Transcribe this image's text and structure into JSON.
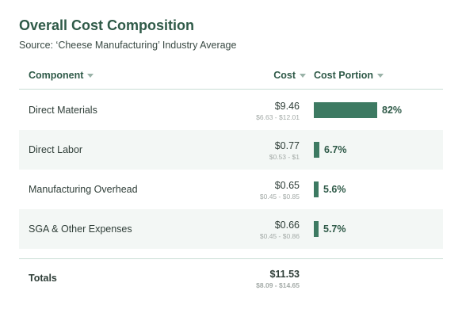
{
  "title": "Overall Cost Composition",
  "subtitle": "Source: ‘Cheese Manufacturing’ Industry Average",
  "columns": {
    "component": "Component",
    "cost": "Cost",
    "portion": "Cost Portion"
  },
  "rows": [
    {
      "label": "Direct Materials",
      "cost": "$9.46",
      "range": "$6.63 - $12.01",
      "portion_text": "82%",
      "portion_value": 82
    },
    {
      "label": "Direct Labor",
      "cost": "$0.77",
      "range": "$0.53 - $1",
      "portion_text": "6.7%",
      "portion_value": 6.7
    },
    {
      "label": "Manufacturing Overhead",
      "cost": "$0.65",
      "range": "$0.45 - $0.85",
      "portion_text": "5.6%",
      "portion_value": 5.6
    },
    {
      "label": "SGA & Other Expenses",
      "cost": "$0.66",
      "range": "$0.45 - $0.86",
      "portion_text": "5.7%",
      "portion_value": 5.7
    }
  ],
  "totals": {
    "label": "Totals",
    "cost": "$11.53",
    "range": "$8.09 - $14.65"
  },
  "colors": {
    "bar": "#3d7a62",
    "accent": "#2f5a48"
  },
  "icons": {
    "sort": "caret-down-icon"
  }
}
